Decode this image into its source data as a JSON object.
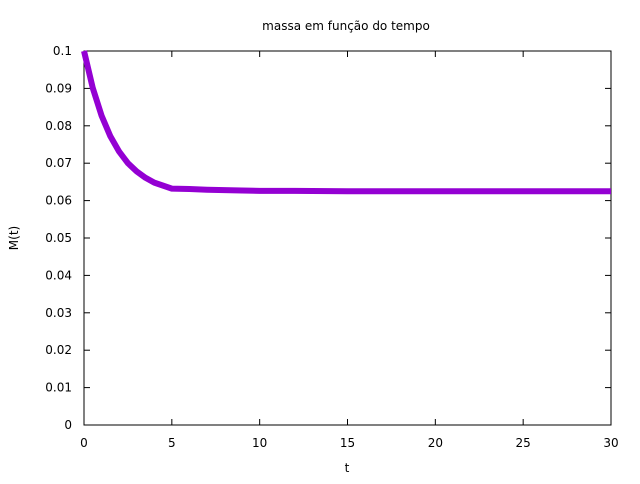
{
  "chart_data": {
    "type": "line",
    "title": "massa em função do tempo",
    "xlabel": "t",
    "ylabel": "M(t)",
    "xlim": [
      0,
      30
    ],
    "ylim": [
      0,
      0.1
    ],
    "xticks": [
      0,
      5,
      10,
      15,
      20,
      25,
      30
    ],
    "xtick_labels": [
      "0",
      "5",
      "10",
      "15",
      "20",
      "25",
      "30"
    ],
    "yticks": [
      0,
      0.01,
      0.02,
      0.03,
      0.04,
      0.05,
      0.06,
      0.07,
      0.08,
      0.09,
      0.1
    ],
    "ytick_labels": [
      "0",
      "0.01",
      "0.02",
      "0.03",
      "0.04",
      "0.05",
      "0.06",
      "0.07",
      "0.08",
      "0.09",
      "0.1"
    ],
    "grid": false,
    "legend": "none",
    "colors": {
      "series": "#9400d3",
      "axes": "#000000"
    },
    "series": [
      {
        "x": [
          0,
          0.5,
          1,
          1.5,
          2,
          2.5,
          3,
          3.5,
          4,
          5,
          6,
          7,
          8,
          9,
          10,
          12,
          15,
          20,
          25,
          30
        ],
        "y": [
          0.1,
          0.0901,
          0.0827,
          0.0772,
          0.0731,
          0.07,
          0.0678,
          0.0661,
          0.0648,
          0.0632,
          0.0631,
          0.0629,
          0.0628,
          0.0627,
          0.0626,
          0.0626,
          0.0625,
          0.0625,
          0.0625,
          0.0625
        ]
      }
    ]
  }
}
